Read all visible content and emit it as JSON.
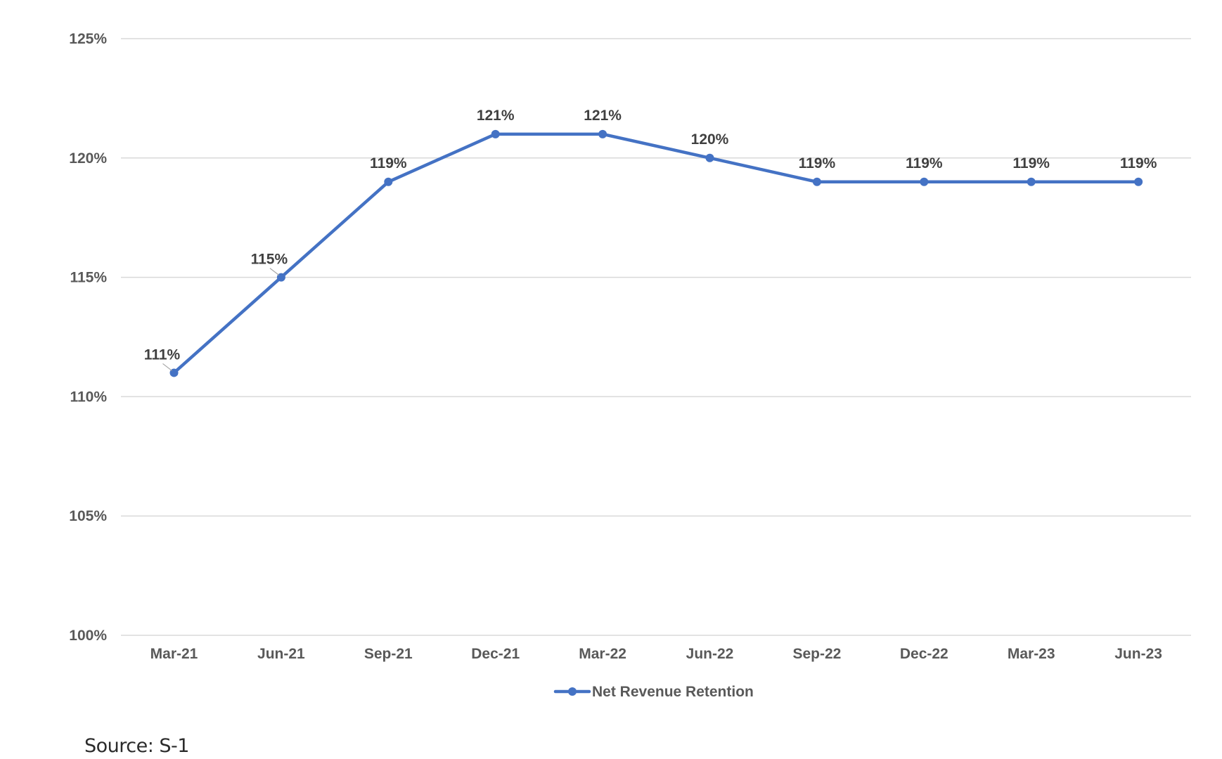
{
  "chart_data": {
    "type": "line",
    "title": "",
    "xlabel": "",
    "ylabel": "",
    "categories": [
      "Mar-21",
      "Jun-21",
      "Sep-21",
      "Dec-21",
      "Mar-22",
      "Jun-22",
      "Sep-22",
      "Dec-22",
      "Mar-23",
      "Jun-23"
    ],
    "series": [
      {
        "name": "Net Revenue Retention",
        "values": [
          111,
          115,
          119,
          121,
          121,
          120,
          119,
          119,
          119,
          119
        ],
        "data_labels": [
          "111%",
          "115%",
          "119%",
          "121%",
          "121%",
          "120%",
          "119%",
          "119%",
          "119%",
          "119%"
        ],
        "color": "#4472C4"
      }
    ],
    "ylim": [
      100,
      125
    ],
    "y_ticks": [
      100,
      105,
      110,
      115,
      120,
      125
    ],
    "y_tick_labels": [
      "100%",
      "105%",
      "110%",
      "115%",
      "120%",
      "125%"
    ],
    "grid": true,
    "legend_position": "bottom"
  },
  "source_note": "Source: S-1",
  "colors": {
    "series": "#4472C4",
    "grid": "#D9D9D9",
    "tick_text": "#595959",
    "label_text": "#404040"
  }
}
